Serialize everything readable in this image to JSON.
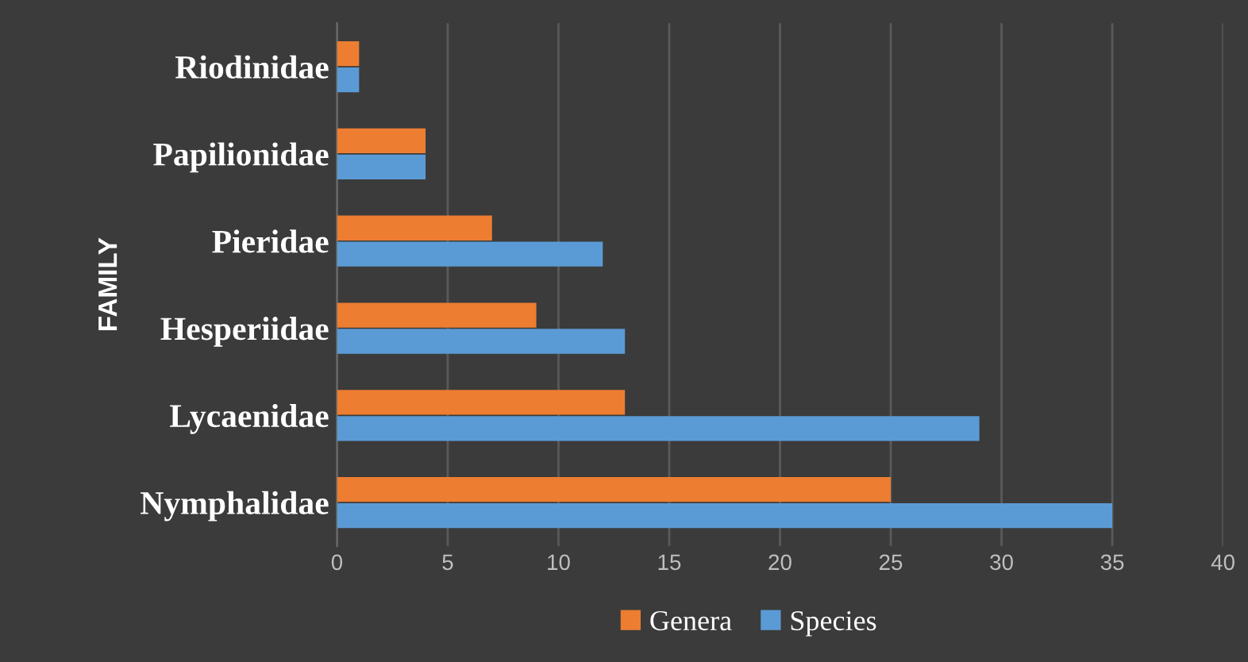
{
  "chart_data": {
    "type": "bar",
    "orientation": "horizontal",
    "ylabel": "FAMILY",
    "categories": [
      "Riodinidae",
      "Papilionidae",
      "Pieridae",
      "Hesperiidae",
      "Lycaenidae",
      "Nymphalidae"
    ],
    "series": [
      {
        "name": "Genera",
        "color": "#ed7d31",
        "values": [
          1,
          4,
          7,
          9,
          13,
          25
        ]
      },
      {
        "name": "Species",
        "color": "#5b9bd5",
        "values": [
          1,
          4,
          12,
          13,
          29,
          35
        ]
      }
    ],
    "xlim": [
      0,
      40
    ],
    "xticks": [
      0,
      5,
      10,
      15,
      20,
      25,
      30,
      35,
      40
    ],
    "grid": "x",
    "legend": "bottom"
  }
}
